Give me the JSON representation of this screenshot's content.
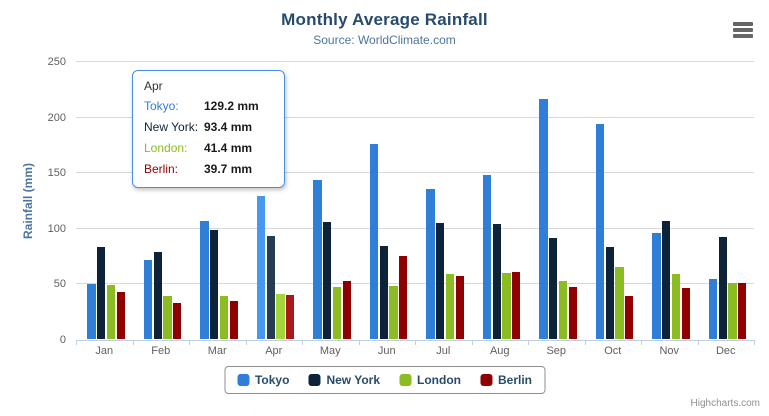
{
  "chart_data": {
    "type": "bar",
    "title": "Monthly Average Rainfall",
    "subtitle": "Source: WorldClimate.com",
    "ylabel": "Rainfall (mm)",
    "ylim": [
      0,
      250
    ],
    "ytick_interval": 50,
    "yticks": [
      0,
      50,
      100,
      150,
      200,
      250
    ],
    "grid": true,
    "legend_position": "bottom",
    "categories": [
      "Jan",
      "Feb",
      "Mar",
      "Apr",
      "May",
      "Jun",
      "Jul",
      "Aug",
      "Sep",
      "Oct",
      "Nov",
      "Dec"
    ],
    "series": [
      {
        "name": "Tokyo",
        "color": "#2f7ed8",
        "hover_color": "#4897f1",
        "values": [
          49.9,
          71.5,
          106.4,
          129.2,
          144.0,
          176.0,
          135.6,
          148.5,
          216.4,
          194.1,
          95.6,
          54.4
        ]
      },
      {
        "name": "New York",
        "color": "#0d233a",
        "hover_color": "#263c53",
        "values": [
          83.6,
          78.8,
          98.5,
          93.4,
          106.0,
          84.5,
          105.0,
          104.3,
          91.2,
          83.5,
          106.6,
          92.3
        ]
      },
      {
        "name": "London",
        "color": "#8bbc21",
        "hover_color": "#a4d53a",
        "values": [
          48.9,
          38.8,
          39.3,
          41.4,
          47.0,
          48.3,
          59.0,
          59.6,
          52.4,
          65.2,
          59.3,
          51.2
        ]
      },
      {
        "name": "Berlin",
        "color": "#910000",
        "hover_color": "#aa1919",
        "values": [
          42.4,
          33.2,
          34.5,
          39.7,
          52.6,
          75.5,
          57.4,
          60.4,
          47.6,
          39.1,
          46.8,
          51.1
        ]
      }
    ],
    "hovered_category": "Apr",
    "hovered_category_index": 3
  },
  "tooltip": {
    "header": "Apr",
    "rows": [
      {
        "label": "Tokyo:",
        "value": "129.2 mm",
        "color": "#2f7ed8"
      },
      {
        "label": "New York:",
        "value": "93.4 mm",
        "color": "#0d233a"
      },
      {
        "label": "London:",
        "value": "41.4 mm",
        "color": "#8bbc21"
      },
      {
        "label": "Berlin:",
        "value": "39.7 mm",
        "color": "#910000"
      }
    ]
  },
  "legend": {
    "items": [
      "Tokyo",
      "New York",
      "London",
      "Berlin"
    ]
  },
  "context_menu": {
    "icon": "hamburger-icon"
  },
  "credits": {
    "label": "Highcharts.com"
  }
}
